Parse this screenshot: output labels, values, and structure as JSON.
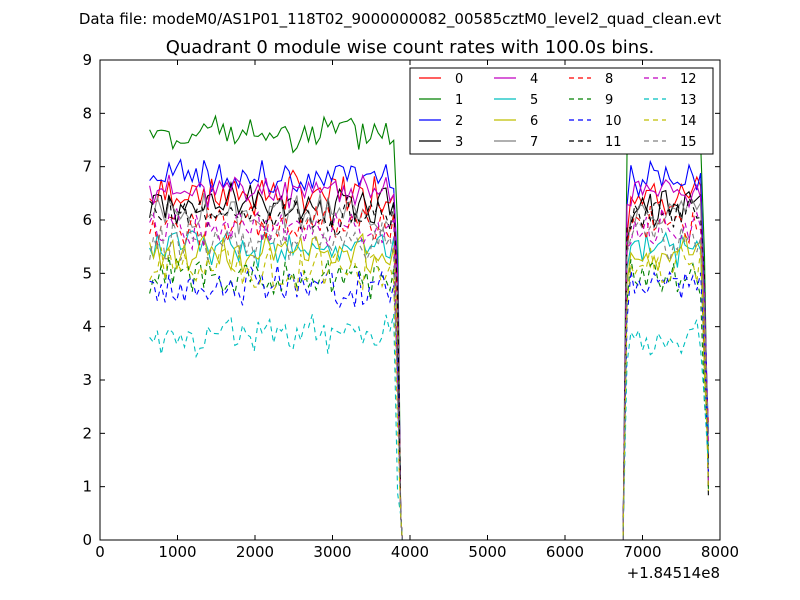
{
  "chart_data": {
    "type": "line",
    "suptitle": "Data file: modeM0/AS1P01_118T02_9000000082_00585cztM0_level2_quad_clean.evt",
    "title": "Quadrant 0 module wise count rates with 100.0s bins.",
    "xlabel": "",
    "ylabel": "",
    "x_offset_label": "+1.84514e8",
    "xlim": [
      0,
      8000
    ],
    "ylim": [
      0,
      9
    ],
    "xticks": [
      0,
      1000,
      2000,
      3000,
      4000,
      5000,
      6000,
      7000,
      8000
    ],
    "yticks": [
      0,
      1,
      2,
      3,
      4,
      5,
      6,
      7,
      8,
      9
    ],
    "legend_position": "top-right",
    "gap_values": {
      "x": [
        3900,
        4000,
        4100,
        4200,
        4300,
        4400,
        4500,
        4600,
        4700,
        4800,
        4900,
        5000,
        5100,
        5200,
        5300,
        5400,
        5500,
        5600,
        5700,
        5800,
        5900,
        6000,
        6100,
        6200,
        6300,
        6400,
        6500,
        6600,
        6700,
        6750
      ],
      "y": 0
    },
    "segment1": {
      "x": [
        640,
        690,
        740,
        790,
        840,
        890,
        940,
        990,
        1040,
        1090,
        1140,
        1190,
        1240,
        1290,
        1340,
        1390,
        1440,
        1490,
        1540,
        1590,
        1640,
        1690,
        1740,
        1790,
        1840,
        1890,
        1940,
        1990,
        2040,
        2090,
        2140,
        2190,
        2240,
        2290,
        2340,
        2390,
        2440,
        2490,
        2540,
        2590,
        2640,
        2690,
        2740,
        2790,
        2840,
        2890,
        2940,
        2990,
        3040,
        3090,
        3140,
        3190,
        3240,
        3290,
        3340,
        3390,
        3440,
        3490,
        3540,
        3590,
        3640,
        3690,
        3740,
        3790,
        3840,
        3880
      ],
      "x_end_drop": 3880
    },
    "segment2": {
      "x": [
        6750,
        6800,
        6850,
        6900,
        6950,
        7000,
        7050,
        7100,
        7150,
        7200,
        7250,
        7300,
        7350,
        7400,
        7450,
        7500,
        7550,
        7600,
        7650,
        7700,
        7750,
        7800,
        7850
      ]
    },
    "series": [
      {
        "name": "0",
        "color": "#ff0000",
        "style": "solid",
        "base": 6.5,
        "amp": 0.3
      },
      {
        "name": "1",
        "color": "#008000",
        "style": "solid",
        "base": 7.6,
        "amp": 0.25
      },
      {
        "name": "2",
        "color": "#0000ff",
        "style": "solid",
        "base": 6.8,
        "amp": 0.25
      },
      {
        "name": "3",
        "color": "#000000",
        "style": "solid",
        "base": 6.3,
        "amp": 0.3
      },
      {
        "name": "4",
        "color": "#c000c0",
        "style": "solid",
        "base": 6.55,
        "amp": 0.2
      },
      {
        "name": "5",
        "color": "#00bfbf",
        "style": "solid",
        "base": 5.5,
        "amp": 0.25
      },
      {
        "name": "6",
        "color": "#bfbf00",
        "style": "solid",
        "base": 5.4,
        "amp": 0.3
      },
      {
        "name": "7",
        "color": "#808080",
        "style": "solid",
        "base": 6.1,
        "amp": 0.25
      },
      {
        "name": "8",
        "color": "#ff0000",
        "style": "dashed",
        "base": 5.9,
        "amp": 0.3
      },
      {
        "name": "9",
        "color": "#008000",
        "style": "dashed",
        "base": 4.95,
        "amp": 0.3
      },
      {
        "name": "10",
        "color": "#0000ff",
        "style": "dashed",
        "base": 4.75,
        "amp": 0.3
      },
      {
        "name": "11",
        "color": "#000000",
        "style": "dashed",
        "base": 6.1,
        "amp": 0.25
      },
      {
        "name": "12",
        "color": "#c000c0",
        "style": "dashed",
        "base": 5.85,
        "amp": 0.25
      },
      {
        "name": "13",
        "color": "#00bfbf",
        "style": "dashed",
        "base": 3.85,
        "amp": 0.25
      },
      {
        "name": "14",
        "color": "#bfbf00",
        "style": "dashed",
        "base": 5.1,
        "amp": 0.3
      },
      {
        "name": "15",
        "color": "#808080",
        "style": "dashed",
        "base": 5.65,
        "amp": 0.3
      }
    ]
  }
}
